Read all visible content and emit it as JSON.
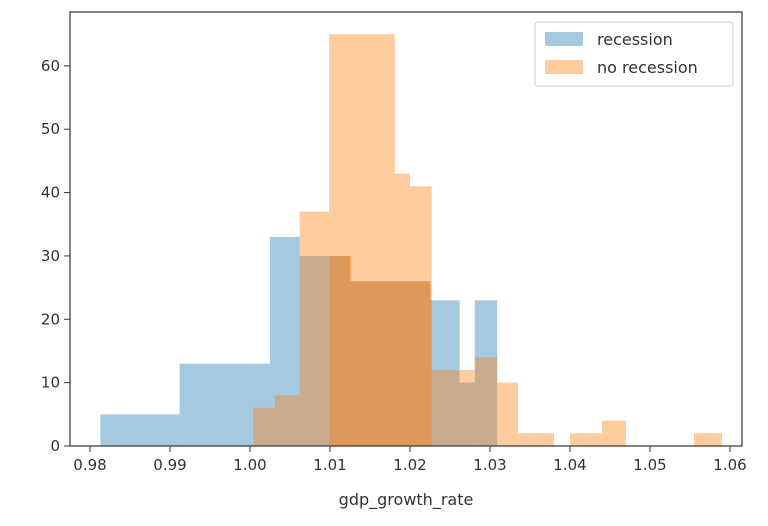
{
  "chart_data": {
    "type": "bar",
    "subtype": "overlaid-histogram",
    "xlabel": "gdp_growth_rate",
    "ylabel": "",
    "xlim": [
      0.9775,
      1.0615
    ],
    "ylim": [
      0,
      68.5
    ],
    "xticks": [
      0.98,
      0.99,
      1.0,
      1.01,
      1.02,
      1.03,
      1.04,
      1.05,
      1.06
    ],
    "xtick_labels": [
      "0.98",
      "0.99",
      "1.00",
      "1.01",
      "1.02",
      "1.03",
      "1.04",
      "1.05",
      "1.06"
    ],
    "yticks": [
      0,
      10,
      20,
      30,
      40,
      50,
      60
    ],
    "ytick_labels": [
      "0",
      "10",
      "20",
      "30",
      "40",
      "50",
      "60"
    ],
    "legend": {
      "position": "top-right"
    },
    "series": [
      {
        "name": "recession",
        "color": "#1f77b4",
        "alpha": 0.4,
        "bins": [
          {
            "x0": 0.9813,
            "x1": 0.9912,
            "value": 5
          },
          {
            "x0": 0.9912,
            "x1": 1.0025,
            "value": 13
          },
          {
            "x0": 1.0025,
            "x1": 1.0062,
            "value": 33
          },
          {
            "x0": 1.0062,
            "x1": 1.0125,
            "value": 30
          },
          {
            "x0": 1.0125,
            "x1": 1.0225,
            "value": 26
          },
          {
            "x0": 1.0225,
            "x1": 1.0262,
            "value": 23
          },
          {
            "x0": 1.0262,
            "x1": 1.0281,
            "value": 10
          },
          {
            "x0": 1.0281,
            "x1": 1.0309,
            "value": 23
          }
        ]
      },
      {
        "name": "no recession",
        "color": "#ff7f0e",
        "alpha": 0.4,
        "bins": [
          {
            "x0": 1.0004,
            "x1": 1.0031,
            "value": 6
          },
          {
            "x0": 1.0031,
            "x1": 1.0062,
            "value": 8
          },
          {
            "x0": 1.0062,
            "x1": 1.0099,
            "value": 37
          },
          {
            "x0": 1.0099,
            "x1": 1.0127,
            "value": 30
          },
          {
            "x0": 1.0127,
            "x1": 1.0179,
            "value": 26
          },
          {
            "x0": 1.0179,
            "x1": 1.02,
            "value": 26
          },
          {
            "x0": 1.02,
            "x1": 1.0227,
            "value": 26
          },
          {
            "x0": 1.0227,
            "x1": 1.0281,
            "value": 12
          },
          {
            "x0": 1.0281,
            "x1": 1.0309,
            "value": 14
          },
          {
            "x0": 1.0309,
            "x1": 1.0335,
            "value": 10
          },
          {
            "x0": 1.0335,
            "x1": 1.038,
            "value": 2
          },
          {
            "x0": 1.04,
            "x1": 1.044,
            "value": 2
          },
          {
            "x0": 1.044,
            "x1": 1.047,
            "value": 4
          },
          {
            "x0": 1.0555,
            "x1": 1.059,
            "value": 2
          }
        ],
        "overlay_bins": [
          {
            "x0": 1.0099,
            "x1": 1.0181,
            "value": 65
          },
          {
            "x0": 1.0181,
            "x1": 1.02,
            "value": 43
          },
          {
            "x0": 1.02,
            "x1": 1.0227,
            "value": 41
          }
        ]
      }
    ]
  }
}
